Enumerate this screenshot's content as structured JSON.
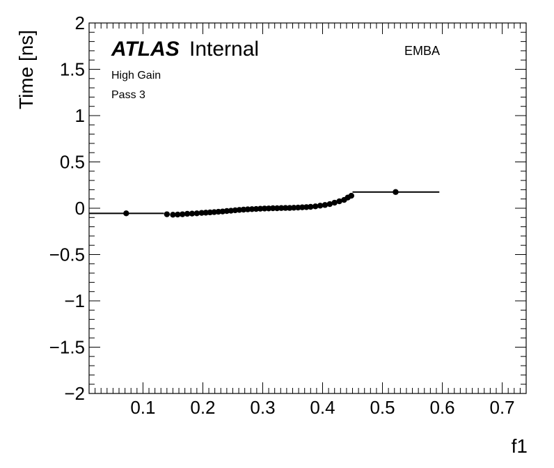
{
  "chart_data": {
    "type": "scatter",
    "title": "",
    "xlabel": "f1",
    "ylabel": "Time [ns]",
    "xlim": [
      0.01,
      0.74
    ],
    "ylim": [
      -2,
      2
    ],
    "x_ticks": [
      0.1,
      0.2,
      0.3,
      0.4,
      0.5,
      0.6,
      0.7
    ],
    "x_tick_labels": [
      "0.1",
      "0.2",
      "0.3",
      "0.4",
      "0.5",
      "0.6",
      "0.7"
    ],
    "y_ticks": [
      -2,
      -1.5,
      -1,
      -0.5,
      0,
      0.5,
      1,
      1.5,
      2
    ],
    "y_tick_labels": [
      "−2",
      "−1.5",
      "−1",
      "−0.5",
      "0",
      "0.5",
      "1",
      "1.5",
      "2"
    ],
    "grid": false,
    "series": [
      {
        "marker": "circle",
        "color": "#000000",
        "points": [
          {
            "x": 0.072,
            "y": -0.055,
            "xerr": [
              0.01,
              0.135
            ]
          },
          {
            "x": 0.14,
            "y": -0.065
          },
          {
            "x": 0.15,
            "y": -0.07
          },
          {
            "x": 0.158,
            "y": -0.068
          },
          {
            "x": 0.166,
            "y": -0.065
          },
          {
            "x": 0.174,
            "y": -0.06
          },
          {
            "x": 0.182,
            "y": -0.058
          },
          {
            "x": 0.19,
            "y": -0.055
          },
          {
            "x": 0.198,
            "y": -0.05
          },
          {
            "x": 0.205,
            "y": -0.048
          },
          {
            "x": 0.212,
            "y": -0.045
          },
          {
            "x": 0.219,
            "y": -0.042
          },
          {
            "x": 0.226,
            "y": -0.038
          },
          {
            "x": 0.233,
            "y": -0.035
          },
          {
            "x": 0.24,
            "y": -0.03
          },
          {
            "x": 0.247,
            "y": -0.027
          },
          {
            "x": 0.254,
            "y": -0.022
          },
          {
            "x": 0.261,
            "y": -0.018
          },
          {
            "x": 0.268,
            "y": -0.015
          },
          {
            "x": 0.275,
            "y": -0.012
          },
          {
            "x": 0.282,
            "y": -0.01
          },
          {
            "x": 0.289,
            "y": -0.008
          },
          {
            "x": 0.296,
            "y": -0.005
          },
          {
            "x": 0.303,
            "y": -0.003
          },
          {
            "x": 0.31,
            "y": -0.002
          },
          {
            "x": 0.317,
            "y": 0.0
          },
          {
            "x": 0.324,
            "y": 0.0
          },
          {
            "x": 0.331,
            "y": 0.002
          },
          {
            "x": 0.338,
            "y": 0.003
          },
          {
            "x": 0.345,
            "y": 0.003
          },
          {
            "x": 0.352,
            "y": 0.005
          },
          {
            "x": 0.359,
            "y": 0.007
          },
          {
            "x": 0.366,
            "y": 0.01
          },
          {
            "x": 0.373,
            "y": 0.012
          },
          {
            "x": 0.38,
            "y": 0.015
          },
          {
            "x": 0.388,
            "y": 0.02
          },
          {
            "x": 0.396,
            "y": 0.028
          },
          {
            "x": 0.404,
            "y": 0.035
          },
          {
            "x": 0.412,
            "y": 0.045
          },
          {
            "x": 0.42,
            "y": 0.06
          },
          {
            "x": 0.428,
            "y": 0.075
          },
          {
            "x": 0.436,
            "y": 0.09
          },
          {
            "x": 0.442,
            "y": 0.115
          },
          {
            "x": 0.448,
            "y": 0.135
          },
          {
            "x": 0.522,
            "y": 0.175,
            "xerr": [
              0.45,
              0.595
            ]
          }
        ]
      }
    ]
  },
  "annotations": {
    "atlas": "ATLAS",
    "internal": "Internal",
    "line1": "High Gain",
    "line2": "Pass 3",
    "region": "EMBA"
  }
}
